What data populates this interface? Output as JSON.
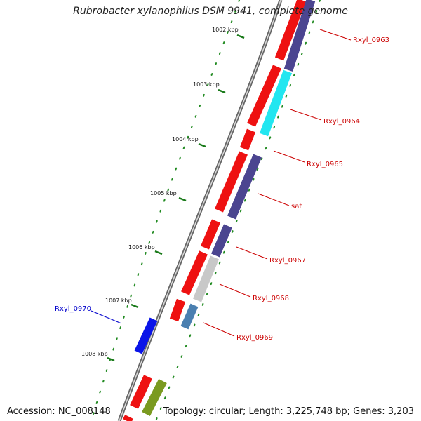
{
  "title": "Rubrobacter xylanophilus DSM 9941, complete genome",
  "footer": {
    "accession": "Accession: NC_008148",
    "summary": "Topology: circular; Length: 3,225,748 bp; Genes: 3,203"
  },
  "kbp_ticks": [
    "1002 kbp",
    "1003 kbp",
    "1004 kbp",
    "1005 kbp",
    "1006 kbp",
    "1007 kbp",
    "1008 kbp"
  ],
  "gene_labels": [
    {
      "name": "Rxyl_0963",
      "color": "#cc0000"
    },
    {
      "name": "Rxyl_0964",
      "color": "#cc0000"
    },
    {
      "name": "Rxyl_0965",
      "color": "#cc0000"
    },
    {
      "name": "sat",
      "color": "#cc0000"
    },
    {
      "name": "Rxyl_0967",
      "color": "#cc0000"
    },
    {
      "name": "Rxyl_0968",
      "color": "#cc0000"
    },
    {
      "name": "Rxyl_0969",
      "color": "#cc0000"
    },
    {
      "name": "Rxyl_0970",
      "color": "#0000cc"
    }
  ],
  "colors": {
    "backbone": "#888888",
    "cds": "#ee1111",
    "cog_navy": "#4b4590",
    "cog_cyan": "#22e6f0",
    "cog_gray": "#c8c8c8",
    "cog_steel": "#4a7fb0",
    "cog_olive": "#7a9a20",
    "reverse_strand": "#0a14e8",
    "tick_dots": "#228b22"
  }
}
